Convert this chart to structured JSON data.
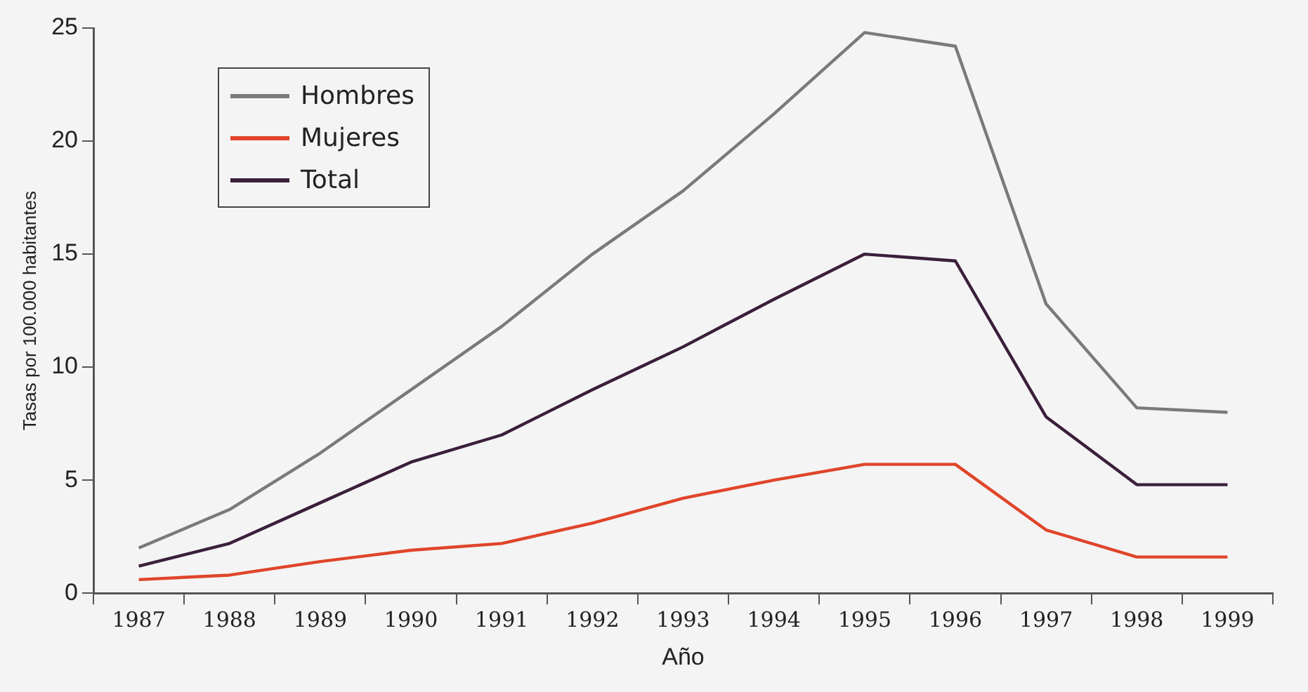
{
  "chart_data": {
    "type": "line",
    "xlabel": "Año",
    "ylabel": "Tasas por 100.000 habitantes",
    "categories": [
      "1987",
      "1988",
      "1989",
      "1990",
      "1991",
      "1992",
      "1993",
      "1994",
      "1995",
      "1996",
      "1997",
      "1998",
      "1999"
    ],
    "series": [
      {
        "name": "Hombres",
        "color": "#7a7a7a",
        "values": [
          2.0,
          3.7,
          6.2,
          9.0,
          11.8,
          15.0,
          17.8,
          21.2,
          24.8,
          24.2,
          12.8,
          8.2,
          8.0
        ]
      },
      {
        "name": "Mujeres",
        "color": "#e0452a",
        "values": [
          0.6,
          0.8,
          1.4,
          1.9,
          2.2,
          3.1,
          4.2,
          5.0,
          5.7,
          5.7,
          2.8,
          1.6,
          1.6
        ]
      },
      {
        "name": "Total",
        "color": "#3a1f3a",
        "values": [
          1.2,
          2.2,
          4.0,
          5.8,
          7.0,
          9.0,
          10.9,
          13.0,
          15.0,
          14.7,
          7.8,
          4.8,
          4.8
        ]
      }
    ],
    "ylim": [
      0,
      25
    ],
    "yticks": [
      0,
      5,
      10,
      15,
      20,
      25
    ],
    "grid": false,
    "legend": "top left",
    "marker": "none",
    "line_style": "solid"
  }
}
